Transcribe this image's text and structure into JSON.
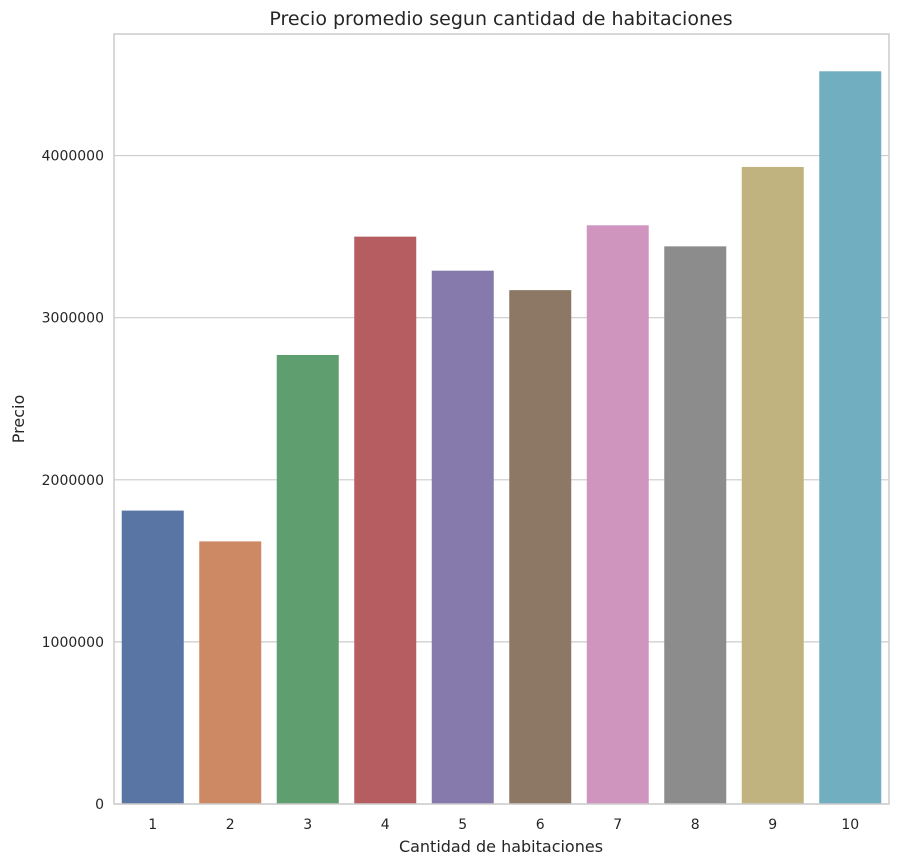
{
  "chart_data": {
    "type": "bar",
    "title": "Precio promedio segun cantidad de habitaciones",
    "xlabel": "Cantidad de habitaciones",
    "ylabel": "Precio",
    "categories": [
      "1",
      "2",
      "3",
      "4",
      "5",
      "6",
      "7",
      "8",
      "9",
      "10"
    ],
    "values": [
      1810000,
      1620000,
      2770000,
      3500000,
      3290000,
      3170000,
      3570000,
      3440000,
      3930000,
      4520000
    ],
    "ylim": [
      0,
      4750000
    ],
    "yticks": [
      0,
      1000000,
      2000000,
      3000000,
      4000000
    ],
    "ytick_labels": [
      "0",
      "1000000",
      "2000000",
      "3000000",
      "4000000"
    ],
    "colors": [
      "#5975a4",
      "#cc8963",
      "#5f9e6e",
      "#b55d60",
      "#857aab",
      "#8d7866",
      "#d095bf",
      "#8c8c8c",
      "#c1b37f",
      "#71aec0"
    ],
    "grid": true,
    "grid_axis": "y",
    "legend": false
  }
}
